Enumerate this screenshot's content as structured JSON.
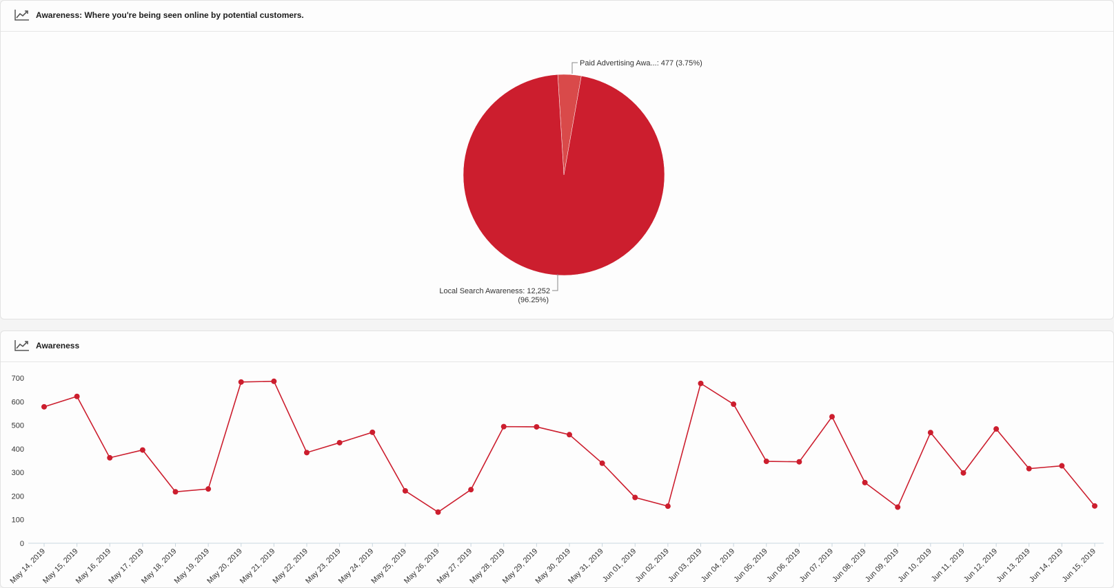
{
  "colors": {
    "primary": "#cc1e2e",
    "secondary": "#d94a4a",
    "axis": "#c9d6de",
    "text": "#333333"
  },
  "pie_panel": {
    "icon": "trend-chart-icon",
    "title": "Awareness: Where you're being seen online by potential customers."
  },
  "line_panel": {
    "icon": "trend-chart-icon",
    "title": "Awareness"
  },
  "chart_data": [
    {
      "type": "pie",
      "slices": [
        {
          "name": "Paid Advertising Awa...",
          "value": 477,
          "percent": 3.75,
          "label": "Paid Advertising Awa...: 477 (3.75%)",
          "color": "#d94a4a"
        },
        {
          "name": "Local Search Awareness",
          "value": 12252,
          "percent": 96.25,
          "label_line1": "Local Search Awareness: 12,252",
          "label_line2": "(96.25%)",
          "color": "#cc1e2e"
        }
      ]
    },
    {
      "type": "line",
      "title": "Awareness",
      "ylim": [
        0,
        700
      ],
      "yticks": [
        0,
        100,
        200,
        300,
        400,
        500,
        600,
        700
      ],
      "grid": false,
      "categories": [
        "May 14, 2019",
        "May 15, 2019",
        "May 16, 2019",
        "May 17, 2019",
        "May 18, 2019",
        "May 19, 2019",
        "May 20, 2019",
        "May 21, 2019",
        "May 22, 2019",
        "May 23, 2019",
        "May 24, 2019",
        "May 25, 2019",
        "May 26, 2019",
        "May 27, 2019",
        "May 28, 2019",
        "May 29, 2019",
        "May 30, 2019",
        "May 31, 2019",
        "Jun 01, 2019",
        "Jun 02, 2019",
        "Jun 03, 2019",
        "Jun 04, 2019",
        "Jun 05, 2019",
        "Jun 06, 2019",
        "Jun 07, 2019",
        "Jun 08, 2019",
        "Jun 09, 2019",
        "Jun 10, 2019",
        "Jun 11, 2019",
        "Jun 12, 2019",
        "Jun 13, 2019",
        "Jun 14, 2019",
        "Jun 15, 2019"
      ],
      "series": [
        {
          "color": "#cc1e2e",
          "values": [
            578,
            622,
            362,
            395,
            218,
            230,
            683,
            686,
            384,
            426,
            470,
            222,
            132,
            227,
            494,
            493,
            460,
            339,
            194,
            157,
            677,
            589,
            347,
            345,
            536,
            257,
            153,
            469,
            298,
            484,
            316,
            328,
            158
          ]
        }
      ]
    }
  ]
}
